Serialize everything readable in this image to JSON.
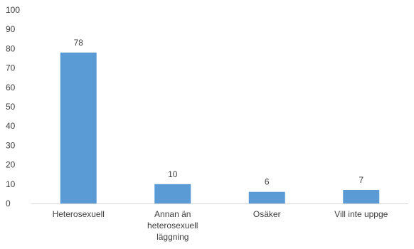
{
  "chart_data": {
    "type": "bar",
    "categories": [
      [
        "Heterosexuell"
      ],
      [
        "Annan än",
        "heterosexuell",
        "läggning"
      ],
      [
        "Osäker"
      ],
      [
        "Vill inte uppge"
      ]
    ],
    "values": [
      78,
      10,
      6,
      7
    ],
    "data_labels": [
      "78",
      "10",
      "6",
      "7"
    ],
    "yticks": [
      "0",
      "10",
      "20",
      "30",
      "40",
      "50",
      "60",
      "70",
      "80",
      "90",
      "100"
    ],
    "ylim": [
      0,
      100
    ],
    "grid": false,
    "legend": "none",
    "bar_color": "#5b9bd5",
    "axis_color": "#d9d9d9"
  }
}
